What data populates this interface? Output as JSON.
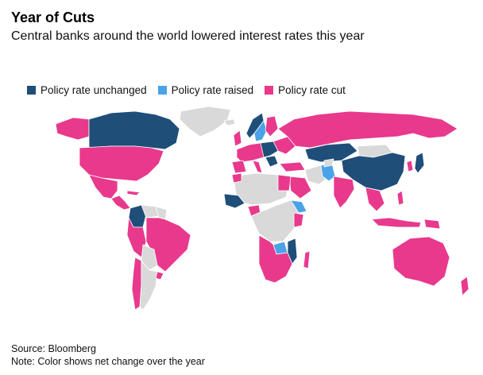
{
  "title": "Year of Cuts",
  "subtitle": "Central banks around the world lowered interest rates this year",
  "legend": [
    {
      "label": "Policy rate unchanged",
      "color": "#1f4e79"
    },
    {
      "label": "Policy rate raised",
      "color": "#4aa3e8"
    },
    {
      "label": "Policy rate cut",
      "color": "#e8398d"
    }
  ],
  "colors": {
    "unchanged": "#1f4e79",
    "raised": "#4aa3e8",
    "cut": "#e8398d",
    "no_data": "#d9d9d9"
  },
  "source": "Source: Bloomberg",
  "note": "Note: Color shows net change over the year"
}
